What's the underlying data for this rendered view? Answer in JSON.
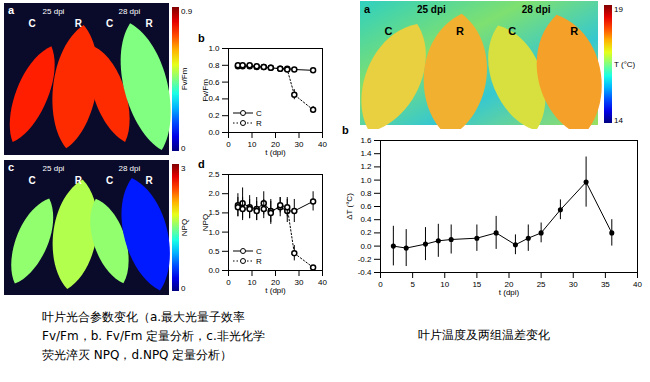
{
  "chart_data": [
    {
      "type": "line",
      "title": "b",
      "x_label": "t (dpi)",
      "y_label": "Fv/Fm",
      "x": [
        4,
        6,
        9,
        12,
        15,
        18,
        22,
        25,
        28,
        36
      ],
      "xlim": [
        0,
        40
      ],
      "xticks": [
        0,
        10,
        20,
        30,
        40
      ],
      "ylim": [
        0,
        1
      ],
      "yticks": [
        {
          "value": 0,
          "label": "0.0"
        },
        0.2,
        0.4,
        0.6,
        0.8,
        {
          "value": 1,
          "label": "1.0"
        }
      ],
      "legend": "lower left",
      "series": [
        {
          "name": "C",
          "color": "#000000",
          "marker": "open_circle",
          "line_style": "solid",
          "values": [
            0.79,
            0.79,
            0.79,
            0.78,
            0.78,
            0.77,
            0.76,
            0.76,
            0.75,
            0.74
          ],
          "errors": [
            0.02,
            0.02,
            0.02,
            0.02,
            0.02,
            0.02,
            0.02,
            0.02,
            0.02,
            0.01
          ]
        },
        {
          "name": "R",
          "color": "#000000",
          "marker": "open_circle",
          "line_style": "dotted",
          "values": [
            0.8,
            0.8,
            0.8,
            0.79,
            0.78,
            0.77,
            0.76,
            0.75,
            0.45,
            0.27
          ],
          "errors": [
            0.03,
            0.03,
            0.02,
            0.02,
            0.02,
            0.02,
            0.02,
            0.03,
            0.06,
            0.04
          ]
        }
      ]
    },
    {
      "type": "line",
      "title": "d",
      "x_label": "t (dpi)",
      "y_label": "NPQ",
      "x": [
        4,
        6,
        9,
        12,
        15,
        18,
        22,
        25,
        28,
        36
      ],
      "xlim": [
        0,
        40
      ],
      "xticks": [
        0,
        10,
        20,
        30,
        40
      ],
      "ylim": [
        0,
        2.5
      ],
      "yticks": [
        {
          "value": 0,
          "label": "0.0"
        },
        0.5,
        {
          "value": 1,
          "label": "1.0"
        },
        1.5,
        {
          "value": 2,
          "label": "2.0"
        },
        2.5
      ],
      "legend": "lower left",
      "series": [
        {
          "name": "C",
          "color": "#000000",
          "marker": "open_circle",
          "line_style": "solid",
          "values": [
            1.7,
            1.75,
            1.65,
            1.6,
            1.75,
            1.55,
            1.65,
            1.55,
            1.55,
            1.8
          ],
          "errors": [
            0.3,
            0.4,
            0.3,
            0.3,
            0.3,
            0.3,
            0.25,
            0.3,
            0.3,
            0.25
          ]
        },
        {
          "name": "R",
          "color": "#000000",
          "marker": "open_circle",
          "line_style": "dotted",
          "values": [
            1.65,
            1.6,
            1.6,
            1.55,
            1.6,
            1.5,
            1.7,
            1.65,
            0.45,
            0.08
          ],
          "errors": [
            0.25,
            0.3,
            0.25,
            0.25,
            0.25,
            0.3,
            0.2,
            0.25,
            0.2,
            0.03
          ]
        }
      ]
    },
    {
      "type": "line",
      "title": "b",
      "x_label": "t (dpi)",
      "y_label": "ΔT (°C)",
      "x": [
        2,
        4,
        7,
        9,
        11,
        15,
        18,
        21,
        23,
        25,
        28,
        32,
        36
      ],
      "xlim": [
        0,
        40
      ],
      "xticks": [
        0,
        5,
        10,
        15,
        20,
        25,
        30,
        35,
        40
      ],
      "ylim": [
        -0.4,
        1.6
      ],
      "yticks": [
        -0.4,
        -0.2,
        {
          "value": 0,
          "label": "0.0"
        },
        0.2,
        0.4,
        0.6,
        0.8,
        {
          "value": 1,
          "label": "1.0"
        },
        1.2,
        1.4,
        1.6
      ],
      "series": [
        {
          "color": "#000000",
          "marker": "circle",
          "line_style": "solid",
          "values": [
            0.0,
            -0.03,
            0.03,
            0.08,
            0.1,
            0.12,
            0.2,
            0.02,
            0.12,
            0.2,
            0.55,
            0.97,
            0.2
          ],
          "errors": [
            0.3,
            0.28,
            0.25,
            0.25,
            0.22,
            0.2,
            0.25,
            0.15,
            0.2,
            0.15,
            0.15,
            0.38,
            0.2
          ]
        }
      ]
    }
  ],
  "images": [
    {
      "title": "a",
      "panel_labels": [
        "25 dpi",
        "28 dpi"
      ],
      "leaf_labels": [
        "C",
        "R"
      ],
      "colorbar": {
        "title": "Fv/Fm",
        "range": [
          0,
          0.9
        ],
        "ticks": [
          0,
          0.9
        ]
      }
    },
    {
      "title": "c",
      "panel_labels": [
        "25 dpi",
        "28 dpi"
      ],
      "leaf_labels": [
        "C",
        "R"
      ],
      "colorbar": {
        "title": "NPQ",
        "range": [
          0,
          3
        ],
        "ticks": [
          0,
          3
        ]
      }
    },
    {
      "title": "a",
      "panel_labels": [
        "25 dpi",
        "28 dpi"
      ],
      "leaf_labels": [
        "C",
        "R"
      ],
      "colorbar": {
        "title": "T (°C)",
        "range": [
          14,
          19
        ],
        "ticks": [
          14,
          19
        ]
      }
    }
  ],
  "captions": [
    {
      "lines": [
        "叶片光合参数变化（a.最大光量子效率",
        "Fv/Fm，b. Fv/Fm 定量分析，c.非光化学",
        "荧光淬灭 NPQ，d.NPQ 定量分析）"
      ]
    },
    {
      "lines": [
        "叶片温度及两组温差变化"
      ]
    }
  ]
}
